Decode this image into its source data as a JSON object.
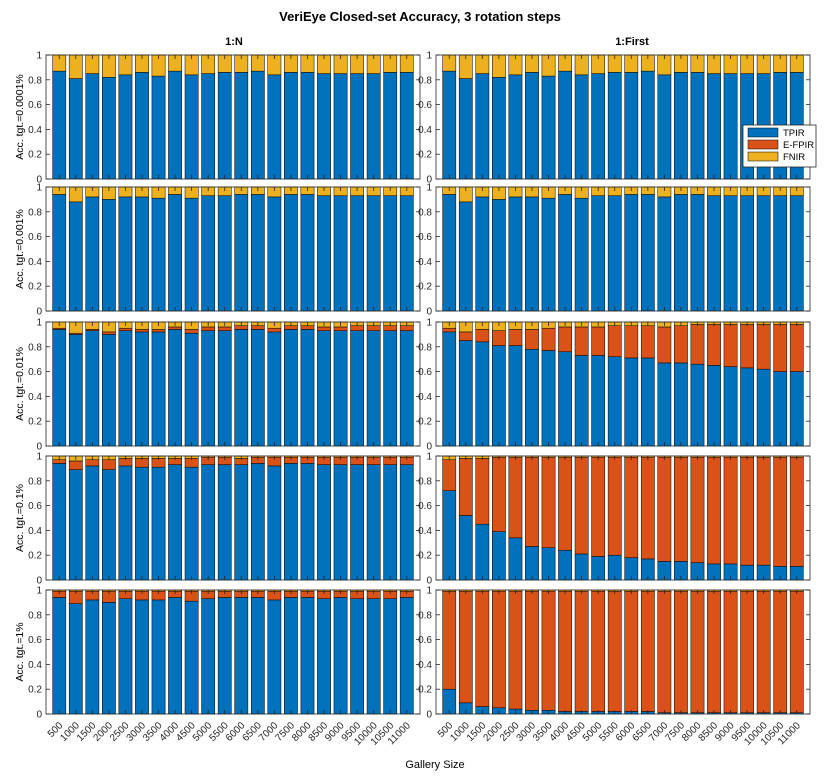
{
  "figure": {
    "title": "VeriEye Closed-set Accuracy, 3 rotation steps",
    "xlabel": "Gallery Size",
    "column_titles": [
      "1:N",
      "1:First"
    ],
    "row_labels": [
      "Acc. tgt.=0.0001%",
      "Acc. tgt.=0.001%",
      "Acc. tgt.=0.01%",
      "Acc. tgt.=0.1%",
      "Acc. tgt.=1%"
    ],
    "legend": {
      "entries": [
        "TPIR",
        "E-FPIR",
        "FNIR"
      ],
      "placement": "right, in top 1:First panel"
    },
    "colors": {
      "TPIR": "#0072BD",
      "E-FPIR": "#D95319",
      "FNIR": "#EDB120"
    }
  },
  "chart_data": {
    "type": "bar",
    "stacked": true,
    "categories": [
      "500",
      "1000",
      "1500",
      "2000",
      "2500",
      "3000",
      "3500",
      "4000",
      "4500",
      "5000",
      "5500",
      "6000",
      "6500",
      "7000",
      "7500",
      "8000",
      "8500",
      "9000",
      "9500",
      "10000",
      "10500",
      "11000"
    ],
    "ylim": [
      0,
      1
    ],
    "yticks": [
      "0",
      "0.2",
      "0.4",
      "0.6",
      "0.8",
      "1"
    ],
    "panels": [
      {
        "row": 0,
        "col": 0,
        "TPIR": [
          0.87,
          0.81,
          0.85,
          0.82,
          0.84,
          0.86,
          0.83,
          0.87,
          0.84,
          0.85,
          0.86,
          0.86,
          0.87,
          0.84,
          0.86,
          0.86,
          0.85,
          0.85,
          0.85,
          0.85,
          0.86,
          0.86
        ],
        "E-FPIR": [
          0,
          0,
          0,
          0,
          0,
          0,
          0,
          0,
          0,
          0,
          0,
          0,
          0,
          0,
          0,
          0,
          0,
          0,
          0,
          0,
          0,
          0
        ]
      },
      {
        "row": 0,
        "col": 1,
        "TPIR": [
          0.87,
          0.81,
          0.85,
          0.82,
          0.84,
          0.86,
          0.83,
          0.87,
          0.84,
          0.85,
          0.86,
          0.86,
          0.87,
          0.84,
          0.86,
          0.86,
          0.85,
          0.85,
          0.85,
          0.85,
          0.86,
          0.86
        ],
        "E-FPIR": [
          0,
          0,
          0,
          0,
          0,
          0,
          0,
          0,
          0,
          0,
          0,
          0,
          0,
          0,
          0,
          0,
          0,
          0,
          0,
          0,
          0,
          0
        ]
      },
      {
        "row": 1,
        "col": 0,
        "TPIR": [
          0.94,
          0.88,
          0.92,
          0.9,
          0.92,
          0.92,
          0.91,
          0.94,
          0.91,
          0.93,
          0.93,
          0.94,
          0.94,
          0.92,
          0.94,
          0.94,
          0.93,
          0.93,
          0.93,
          0.93,
          0.93,
          0.93
        ],
        "E-FPIR": [
          0,
          0,
          0,
          0,
          0,
          0,
          0,
          0,
          0,
          0,
          0,
          0,
          0,
          0,
          0,
          0,
          0,
          0,
          0,
          0,
          0,
          0
        ]
      },
      {
        "row": 1,
        "col": 1,
        "TPIR": [
          0.94,
          0.88,
          0.92,
          0.9,
          0.92,
          0.92,
          0.91,
          0.94,
          0.91,
          0.93,
          0.93,
          0.94,
          0.94,
          0.92,
          0.94,
          0.94,
          0.93,
          0.93,
          0.93,
          0.93,
          0.93,
          0.93
        ],
        "E-FPIR": [
          0,
          0,
          0,
          0,
          0,
          0,
          0,
          0,
          0,
          0,
          0,
          0,
          0,
          0,
          0,
          0,
          0,
          0,
          0,
          0,
          0,
          0
        ]
      },
      {
        "row": 2,
        "col": 0,
        "TPIR": [
          0.94,
          0.9,
          0.93,
          0.9,
          0.93,
          0.92,
          0.92,
          0.94,
          0.91,
          0.93,
          0.93,
          0.94,
          0.94,
          0.92,
          0.94,
          0.94,
          0.93,
          0.93,
          0.93,
          0.93,
          0.93,
          0.93
        ],
        "E-FPIR": [
          0.01,
          0.01,
          0.01,
          0.02,
          0.02,
          0.02,
          0.02,
          0.02,
          0.03,
          0.03,
          0.03,
          0.03,
          0.03,
          0.03,
          0.03,
          0.03,
          0.03,
          0.03,
          0.04,
          0.04,
          0.04,
          0.04
        ]
      },
      {
        "row": 2,
        "col": 1,
        "TPIR": [
          0.92,
          0.85,
          0.84,
          0.81,
          0.81,
          0.78,
          0.77,
          0.76,
          0.73,
          0.73,
          0.72,
          0.71,
          0.71,
          0.67,
          0.67,
          0.66,
          0.65,
          0.64,
          0.63,
          0.62,
          0.6,
          0.6
        ],
        "E-FPIR": [
          0.03,
          0.07,
          0.1,
          0.12,
          0.13,
          0.16,
          0.18,
          0.2,
          0.23,
          0.23,
          0.25,
          0.26,
          0.26,
          0.29,
          0.3,
          0.32,
          0.33,
          0.34,
          0.35,
          0.36,
          0.38,
          0.38
        ]
      },
      {
        "row": 3,
        "col": 0,
        "TPIR": [
          0.94,
          0.89,
          0.92,
          0.89,
          0.92,
          0.91,
          0.91,
          0.93,
          0.91,
          0.93,
          0.93,
          0.93,
          0.94,
          0.92,
          0.94,
          0.94,
          0.93,
          0.93,
          0.93,
          0.93,
          0.93,
          0.93
        ],
        "E-FPIR": [
          0.03,
          0.07,
          0.05,
          0.08,
          0.06,
          0.07,
          0.07,
          0.05,
          0.07,
          0.06,
          0.06,
          0.05,
          0.05,
          0.07,
          0.05,
          0.05,
          0.06,
          0.06,
          0.06,
          0.06,
          0.06,
          0.06
        ]
      },
      {
        "row": 3,
        "col": 1,
        "TPIR": [
          0.72,
          0.52,
          0.45,
          0.39,
          0.34,
          0.27,
          0.26,
          0.24,
          0.21,
          0.19,
          0.2,
          0.18,
          0.17,
          0.15,
          0.15,
          0.14,
          0.13,
          0.13,
          0.12,
          0.12,
          0.11,
          0.11
        ],
        "E-FPIR": [
          0.25,
          0.46,
          0.53,
          0.6,
          0.65,
          0.72,
          0.73,
          0.75,
          0.78,
          0.8,
          0.79,
          0.81,
          0.82,
          0.84,
          0.84,
          0.85,
          0.86,
          0.86,
          0.87,
          0.87,
          0.88,
          0.88
        ]
      },
      {
        "row": 4,
        "col": 0,
        "TPIR": [
          0.94,
          0.89,
          0.92,
          0.9,
          0.93,
          0.92,
          0.92,
          0.94,
          0.91,
          0.93,
          0.94,
          0.94,
          0.94,
          0.92,
          0.94,
          0.94,
          0.93,
          0.94,
          0.93,
          0.93,
          0.93,
          0.94
        ],
        "E-FPIR": [
          0.05,
          0.1,
          0.07,
          0.09,
          0.06,
          0.07,
          0.07,
          0.05,
          0.08,
          0.06,
          0.05,
          0.05,
          0.05,
          0.07,
          0.05,
          0.05,
          0.06,
          0.05,
          0.06,
          0.06,
          0.06,
          0.05
        ]
      },
      {
        "row": 4,
        "col": 1,
        "TPIR": [
          0.2,
          0.09,
          0.06,
          0.05,
          0.04,
          0.03,
          0.03,
          0.02,
          0.02,
          0.02,
          0.02,
          0.02,
          0.02,
          0.01,
          0.01,
          0.01,
          0.01,
          0.01,
          0.01,
          0.01,
          0.01,
          0.01
        ],
        "E-FPIR": [
          0.79,
          0.9,
          0.93,
          0.94,
          0.95,
          0.96,
          0.96,
          0.97,
          0.97,
          0.97,
          0.97,
          0.97,
          0.97,
          0.98,
          0.98,
          0.98,
          0.98,
          0.98,
          0.98,
          0.98,
          0.98,
          0.98
        ]
      }
    ]
  }
}
